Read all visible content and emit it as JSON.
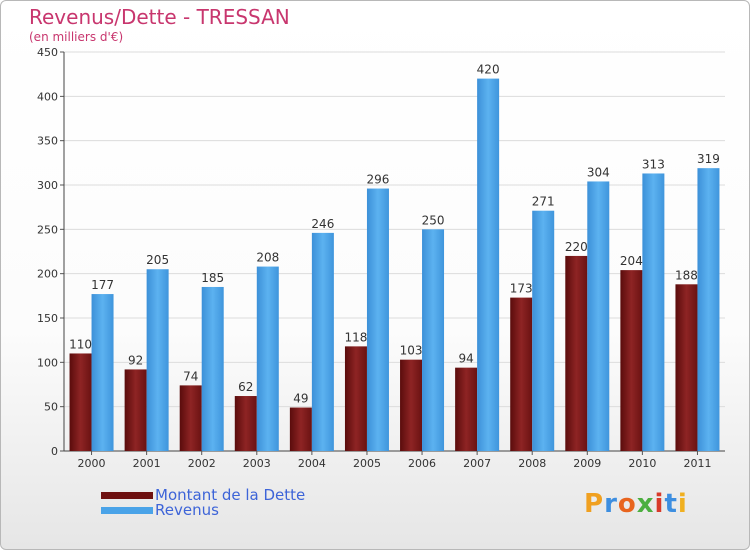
{
  "header": {
    "title": "Revenus/Dette - TRESSAN",
    "subtitle": "(en milliers d'€)"
  },
  "legend": {
    "debt_label": "Montant de la Dette",
    "revenue_label": "Revenus"
  },
  "logo": {
    "text": "Proxiti"
  },
  "colors": {
    "debt": "#7a1a1a",
    "revenue": "#4aa3e8",
    "title": "#c8366e",
    "legend_text": "#3d64d8"
  },
  "chart_data": {
    "type": "bar",
    "title": "Revenus/Dette - TRESSAN",
    "ylabel": "(en milliers d'€)",
    "xlabel": "",
    "categories": [
      "2000",
      "2001",
      "2002",
      "2003",
      "2004",
      "2005",
      "2006",
      "2007",
      "2008",
      "2009",
      "2010",
      "2011"
    ],
    "series": [
      {
        "name": "Montant de la Dette",
        "values": [
          110,
          92,
          74,
          62,
          49,
          118,
          103,
          94,
          173,
          220,
          204,
          188
        ]
      },
      {
        "name": "Revenus",
        "values": [
          177,
          205,
          185,
          208,
          246,
          296,
          250,
          420,
          271,
          304,
          313,
          319
        ]
      }
    ],
    "yticks": [
      0,
      50,
      100,
      150,
      200,
      250,
      300,
      350,
      400,
      450
    ],
    "ylim": [
      0,
      450
    ],
    "grid": true,
    "legend_position": "bottom-left"
  }
}
